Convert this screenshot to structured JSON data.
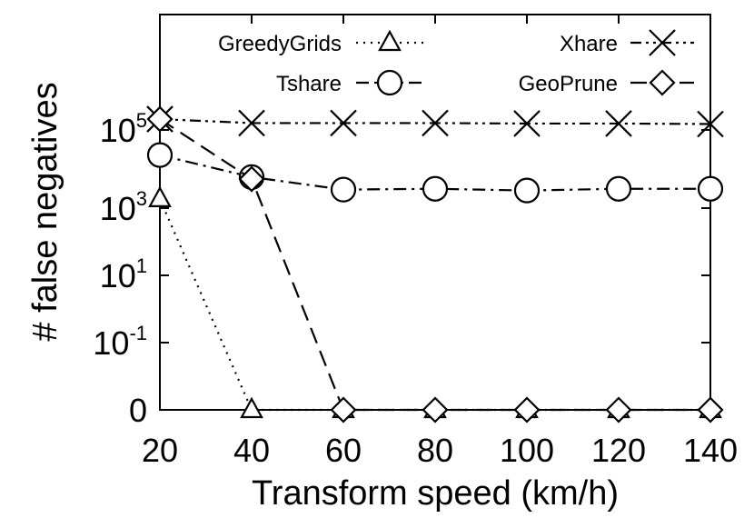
{
  "chart_data": {
    "type": "line",
    "xlabel": "Transform speed (km/h)",
    "ylabel": "# false negatives",
    "x": [
      20,
      40,
      60,
      80,
      100,
      120,
      140
    ],
    "y_scale": "log (0 shown at bottom)",
    "y_ticks": [
      {
        "base": "0",
        "exp": ""
      },
      {
        "base": "10",
        "exp": "-1"
      },
      {
        "base": "10",
        "exp": "1"
      },
      {
        "base": "10",
        "exp": "3"
      },
      {
        "base": "10",
        "exp": "5"
      }
    ],
    "legend_position": "top",
    "series": [
      {
        "name": "GreedyGrids",
        "marker": "triangle",
        "dash": "dotted",
        "values": [
          900,
          0,
          0,
          0,
          0,
          0,
          0
        ]
      },
      {
        "name": "Tshare",
        "marker": "circle",
        "dash": "dash-dot",
        "values": [
          18000,
          4000,
          1700,
          1800,
          1600,
          1800,
          1800
        ]
      },
      {
        "name": "Xhare",
        "marker": "x",
        "dash": "dash-dot-dot",
        "values": [
          210000,
          160000,
          160000,
          160000,
          155000,
          155000,
          150000
        ]
      },
      {
        "name": "GeoPrune",
        "marker": "diamond",
        "dash": "dashed",
        "values": [
          210000,
          3500,
          0,
          0,
          0,
          0,
          0
        ]
      }
    ]
  }
}
